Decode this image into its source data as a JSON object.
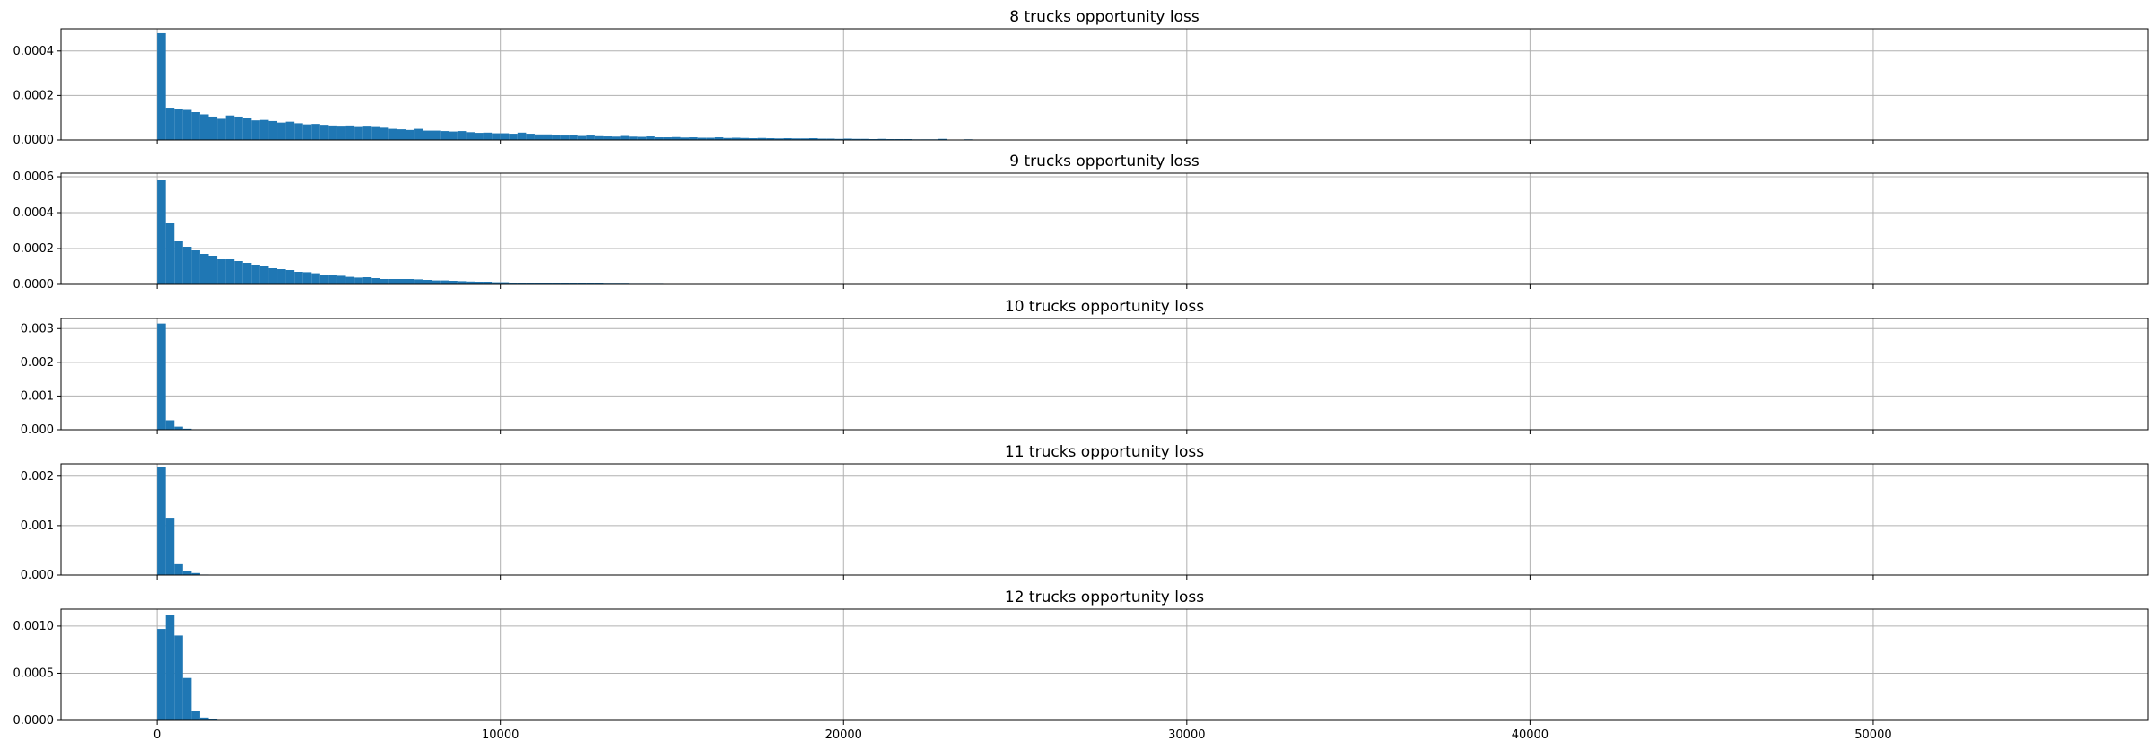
{
  "figure": {
    "background": "#ffffff"
  },
  "style": {
    "bar_color": "#1f77b4",
    "grid_color": "#b0b0b0",
    "axis_color": "#000000"
  },
  "chart_data": [
    {
      "type": "bar",
      "title": "8 trucks opportunity loss",
      "xlabel": "",
      "ylabel": "",
      "xlim": [
        -2800,
        58000
      ],
      "ylim": [
        0,
        0.0005
      ],
      "xticks": [
        0,
        10000,
        20000,
        30000,
        40000,
        50000
      ],
      "xtick_labels_visible": false,
      "yticks": [
        0,
        0.0002,
        0.0004
      ],
      "ytick_labels": [
        "0.0000",
        "0.0002",
        "0.0004"
      ],
      "grid": true,
      "bin_start": 0,
      "bin_width": 250,
      "values": [
        0.00048,
        0.000145,
        0.00014,
        0.000135,
        0.000125,
        0.000115,
        0.000105,
        9.5e-05,
        0.00011,
        0.000105,
        0.0001,
        8.8e-05,
        9e-05,
        8.5e-05,
        7.8e-05,
        8.2e-05,
        7.5e-05,
        7e-05,
        7.2e-05,
        6.8e-05,
        6.5e-05,
        6e-05,
        6.5e-05,
        5.8e-05,
        6e-05,
        5.8e-05,
        5.5e-05,
        5e-05,
        4.8e-05,
        4.5e-05,
        5e-05,
        4.2e-05,
        4.2e-05,
        4e-05,
        3.8e-05,
        4e-05,
        3.5e-05,
        3.2e-05,
        3.3e-05,
        3e-05,
        3e-05,
        2.8e-05,
        3.3e-05,
        2.8e-05,
        2.5e-05,
        2.5e-05,
        2.4e-05,
        2e-05,
        2.3e-05,
        1.8e-05,
        2e-05,
        1.7e-05,
        1.6e-05,
        1.5e-05,
        1.8e-05,
        1.5e-05,
        1.4e-05,
        1.6e-05,
        1.2e-05,
        1.2e-05,
        1.3e-05,
        1.1e-05,
        1.2e-05,
        1e-05,
        1e-05,
        1.2e-05,
        9e-06,
        1e-05,
        9e-06,
        8e-06,
        9e-06,
        8e-06,
        7e-06,
        8e-06,
        7e-06,
        7e-06,
        8e-06,
        6e-06,
        6e-06,
        5e-06,
        6e-06,
        5e-06,
        5e-06,
        4e-06,
        5e-06,
        4e-06,
        4e-06,
        4e-06,
        3e-06,
        3e-06,
        3e-06,
        5e-06,
        2e-06,
        2e-06,
        3e-06,
        2e-06,
        2e-06,
        2e-06,
        2e-06,
        1e-06,
        2e-06,
        1e-06,
        1e-06,
        2e-06,
        1e-06,
        1e-06,
        1e-06,
        1e-06,
        1e-06,
        1e-06,
        1e-06,
        1e-06,
        0,
        0,
        1e-06,
        0,
        1e-06,
        0,
        1e-06,
        0,
        1e-06,
        0,
        0,
        0,
        1e-06,
        0,
        0,
        0,
        1e-06,
        0,
        0,
        0,
        0,
        0,
        0,
        0,
        0,
        0,
        0,
        0,
        0,
        0,
        0,
        0,
        0,
        0,
        0,
        0,
        0,
        0,
        0,
        0,
        0,
        0,
        0,
        0,
        0,
        0,
        0,
        0,
        0,
        0,
        0,
        0,
        0,
        0,
        0,
        0,
        0,
        0,
        0,
        0,
        0,
        0,
        0,
        0,
        0,
        0,
        0,
        0,
        0,
        0,
        0,
        0,
        0,
        0,
        0,
        0,
        0,
        0,
        0,
        0,
        0,
        0,
        0,
        0,
        0,
        0,
        0,
        0,
        0,
        0,
        0,
        0,
        0,
        0,
        0,
        0,
        0,
        0,
        0,
        0,
        0,
        0,
        0,
        0,
        0,
        0,
        0,
        0,
        0,
        0,
        0,
        0,
        0,
        0,
        0,
        0,
        0,
        0,
        0,
        0,
        0,
        0,
        0,
        0,
        0,
        0,
        0,
        0,
        0,
        0,
        0,
        0,
        0,
        0,
        0,
        0
      ]
    },
    {
      "type": "bar",
      "title": "9 trucks opportunity loss",
      "xlabel": "",
      "ylabel": "",
      "xlim": [
        -2800,
        58000
      ],
      "ylim": [
        0,
        0.00062
      ],
      "xticks": [
        0,
        10000,
        20000,
        30000,
        40000,
        50000
      ],
      "xtick_labels_visible": false,
      "yticks": [
        0,
        0.0002,
        0.0004,
        0.0006
      ],
      "ytick_labels": [
        "0.0000",
        "0.0002",
        "0.0004",
        "0.0006"
      ],
      "grid": true,
      "bin_start": 0,
      "bin_width": 250,
      "values": [
        0.00058,
        0.00034,
        0.00024,
        0.00021,
        0.00019,
        0.00017,
        0.00016,
        0.00014,
        0.00014,
        0.00013,
        0.00012,
        0.00011,
        0.0001,
        9e-05,
        8.5e-05,
        8e-05,
        7e-05,
        6.8e-05,
        6.2e-05,
        5.5e-05,
        5e-05,
        4.8e-05,
        4.2e-05,
        3.8e-05,
        4e-05,
        3.5e-05,
        3e-05,
        3e-05,
        3e-05,
        3e-05,
        2.8e-05,
        2.5e-05,
        2.2e-05,
        2.2e-05,
        2e-05,
        1.8e-05,
        1.6e-05,
        1.5e-05,
        1.5e-05,
        1.2e-05,
        1.2e-05,
        1e-05,
        9e-06,
        9e-06,
        8e-06,
        7e-06,
        7e-06,
        6e-06,
        6e-06,
        5e-06,
        5e-06,
        5e-06,
        4e-06,
        4e-06,
        4e-06,
        3e-06,
        3e-06,
        3e-06,
        3e-06,
        2e-06,
        2e-06,
        2e-06,
        2e-06,
        2e-06,
        2e-06,
        2e-06,
        1e-06,
        1e-06,
        1e-06,
        1e-06,
        1e-06,
        1e-06,
        1e-06,
        1e-06,
        1e-06,
        1e-06,
        1e-06,
        1e-06,
        1e-06,
        1e-06,
        1e-06,
        1e-06,
        1e-06,
        1e-06,
        0,
        0,
        0,
        0,
        0,
        0,
        0,
        0,
        0,
        0,
        0,
        0,
        0,
        0,
        0,
        0,
        0,
        0,
        0,
        0,
        0,
        0,
        0,
        0,
        0,
        0,
        0,
        0,
        0,
        0,
        0,
        0,
        0,
        0,
        0,
        0,
        0,
        0,
        0,
        0,
        0,
        0,
        0,
        0,
        0,
        0,
        0,
        0,
        0,
        0,
        0,
        0,
        0,
        0,
        0,
        0,
        0,
        0,
        0,
        0,
        0,
        0,
        0,
        0,
        0,
        0,
        0,
        0,
        0,
        0,
        0,
        0,
        0,
        0,
        0,
        0,
        0,
        0,
        0,
        0,
        0,
        0,
        0,
        0,
        0,
        0,
        0,
        0,
        0,
        0,
        0,
        0,
        0,
        0,
        0,
        0,
        0,
        0,
        0,
        0,
        0,
        0,
        0,
        0,
        0,
        0,
        0,
        0,
        0,
        0,
        0,
        0,
        0,
        0,
        0,
        0,
        0,
        0,
        0,
        0,
        0,
        0,
        0,
        0,
        0,
        0,
        0,
        0,
        0,
        0,
        0,
        0,
        0,
        0,
        0,
        0,
        0,
        0,
        0,
        0,
        0,
        0,
        0,
        0,
        0,
        0,
        0,
        0,
        0,
        0,
        0,
        0,
        0,
        0,
        0,
        0,
        0,
        0,
        0,
        0,
        0,
        0,
        0,
        0,
        0,
        0,
        0,
        0
      ]
    },
    {
      "type": "bar",
      "title": "10 trucks opportunity loss",
      "xlabel": "",
      "ylabel": "",
      "xlim": [
        -2800,
        58000
      ],
      "ylim": [
        0,
        0.0033
      ],
      "xticks": [
        0,
        10000,
        20000,
        30000,
        40000,
        50000
      ],
      "xtick_labels_visible": false,
      "yticks": [
        0,
        0.001,
        0.002,
        0.003
      ],
      "ytick_labels": [
        "0.000",
        "0.001",
        "0.002",
        "0.003"
      ],
      "grid": true,
      "bin_start": 0,
      "bin_width": 250,
      "values": [
        0.00315,
        0.00028,
        9e-05,
        3e-05,
        1e-05
      ]
    },
    {
      "type": "bar",
      "title": "11 trucks opportunity loss",
      "xlabel": "",
      "ylabel": "",
      "xlim": [
        -2800,
        58000
      ],
      "ylim": [
        0,
        0.00225
      ],
      "xticks": [
        0,
        10000,
        20000,
        30000,
        40000,
        50000
      ],
      "xtick_labels_visible": false,
      "yticks": [
        0,
        0.001,
        0.002
      ],
      "ytick_labels": [
        "0.000",
        "0.001",
        "0.002"
      ],
      "grid": true,
      "bin_start": 0,
      "bin_width": 250,
      "values": [
        0.00219,
        0.00116,
        0.00022,
        8e-05,
        4e-05,
        1e-05
      ]
    },
    {
      "type": "bar",
      "title": "12 trucks opportunity loss",
      "xlabel": "",
      "ylabel": "",
      "xlim": [
        -2800,
        58000
      ],
      "ylim": [
        0,
        0.00118
      ],
      "xticks": [
        0,
        10000,
        20000,
        30000,
        40000,
        50000
      ],
      "xtick_labels": [
        "0",
        "10000",
        "20000",
        "30000",
        "40000",
        "50000"
      ],
      "xtick_labels_visible": true,
      "yticks": [
        0,
        0.0005,
        0.001
      ],
      "ytick_labels": [
        "0.0000",
        "0.0005",
        "0.0010"
      ],
      "grid": true,
      "bin_start": 0,
      "bin_width": 250,
      "values": [
        0.00097,
        0.00112,
        0.0009,
        0.00045,
        0.0001,
        3e-05,
        1e-05
      ]
    }
  ]
}
